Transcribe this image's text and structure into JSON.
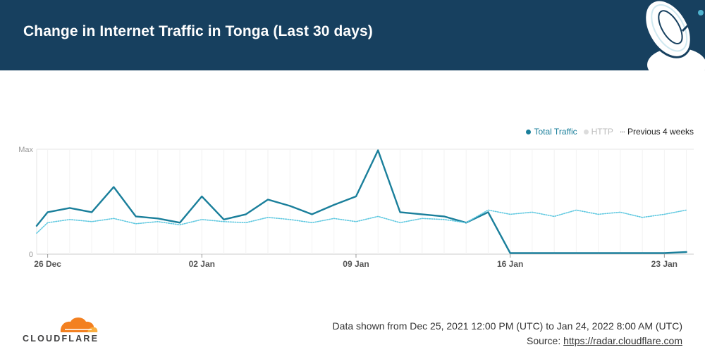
{
  "header": {
    "title": "Change in Internet Traffic in Tonga (Last 30 days)"
  },
  "colors": {
    "header_bg": "#17405f",
    "total": "#1a7f9b",
    "http": "#dcdcdc",
    "previous": "#5ec8e0",
    "brand": "#f38020"
  },
  "icons": {
    "header": "satellite-dish-icon",
    "logo": "cloudflare-cloud-icon"
  },
  "legend": {
    "total": "Total Traffic",
    "http": "HTTP",
    "previous": "Previous 4 weeks"
  },
  "footer": {
    "range_text": "Data shown from Dec 25, 2021 12:00 PM (UTC) to Jan 24, 2022 8:00 AM (UTC)",
    "source_label": "Source:",
    "source_link": "https://radar.cloudflare.com",
    "brand": "CLOUDFLARE"
  },
  "chart_data": {
    "type": "line",
    "x_start": "2021-12-25",
    "x_end": "2022-01-24",
    "x_ticks": [
      {
        "date": "2021-12-26",
        "label": "26 Dec"
      },
      {
        "date": "2022-01-02",
        "label": "02 Jan"
      },
      {
        "date": "2022-01-09",
        "label": "09 Jan"
      },
      {
        "date": "2022-01-16",
        "label": "16 Jan"
      },
      {
        "date": "2022-01-23",
        "label": "23 Jan"
      }
    ],
    "y_ticks": [
      {
        "value": 0,
        "label": "0"
      },
      {
        "value": 100,
        "label": "Max"
      }
    ],
    "ylim": [
      0,
      100
    ],
    "legend_position": "top-right",
    "series": [
      {
        "name": "Total Traffic",
        "style": "solid",
        "points": [
          [
            "2021-12-25",
            27
          ],
          [
            "2021-12-26",
            40
          ],
          [
            "2021-12-27",
            44
          ],
          [
            "2021-12-28",
            40
          ],
          [
            "2021-12-29",
            64
          ],
          [
            "2021-12-30",
            36
          ],
          [
            "2021-12-31",
            34
          ],
          [
            "2022-01-01",
            30
          ],
          [
            "2022-01-02",
            55
          ],
          [
            "2022-01-03",
            33
          ],
          [
            "2022-01-04",
            38
          ],
          [
            "2022-01-05",
            52
          ],
          [
            "2022-01-06",
            46
          ],
          [
            "2022-01-07",
            38
          ],
          [
            "2022-01-08",
            47
          ],
          [
            "2022-01-09",
            55
          ],
          [
            "2022-01-10",
            99
          ],
          [
            "2022-01-11",
            40
          ],
          [
            "2022-01-12",
            38
          ],
          [
            "2022-01-13",
            36
          ],
          [
            "2022-01-14",
            30
          ],
          [
            "2022-01-15",
            40
          ],
          [
            "2022-01-16",
            1
          ],
          [
            "2022-01-17",
            1
          ],
          [
            "2022-01-18",
            1
          ],
          [
            "2022-01-19",
            1
          ],
          [
            "2022-01-20",
            1
          ],
          [
            "2022-01-21",
            1
          ],
          [
            "2022-01-22",
            1
          ],
          [
            "2022-01-23",
            1
          ],
          [
            "2022-01-24",
            2
          ]
        ]
      },
      {
        "name": "Previous 4 weeks",
        "style": "dotted",
        "points": [
          [
            "2021-12-25",
            20
          ],
          [
            "2021-12-26",
            30
          ],
          [
            "2021-12-27",
            33
          ],
          [
            "2021-12-28",
            31
          ],
          [
            "2021-12-29",
            34
          ],
          [
            "2021-12-30",
            29
          ],
          [
            "2021-12-31",
            31
          ],
          [
            "2022-01-01",
            28
          ],
          [
            "2022-01-02",
            33
          ],
          [
            "2022-01-03",
            31
          ],
          [
            "2022-01-04",
            30
          ],
          [
            "2022-01-05",
            35
          ],
          [
            "2022-01-06",
            33
          ],
          [
            "2022-01-07",
            30
          ],
          [
            "2022-01-08",
            34
          ],
          [
            "2022-01-09",
            31
          ],
          [
            "2022-01-10",
            36
          ],
          [
            "2022-01-11",
            30
          ],
          [
            "2022-01-12",
            34
          ],
          [
            "2022-01-13",
            33
          ],
          [
            "2022-01-14",
            30
          ],
          [
            "2022-01-15",
            42
          ],
          [
            "2022-01-16",
            38
          ],
          [
            "2022-01-17",
            40
          ],
          [
            "2022-01-18",
            36
          ],
          [
            "2022-01-19",
            42
          ],
          [
            "2022-01-20",
            38
          ],
          [
            "2022-01-21",
            40
          ],
          [
            "2022-01-22",
            35
          ],
          [
            "2022-01-23",
            38
          ],
          [
            "2022-01-24",
            42
          ]
        ]
      }
    ]
  }
}
